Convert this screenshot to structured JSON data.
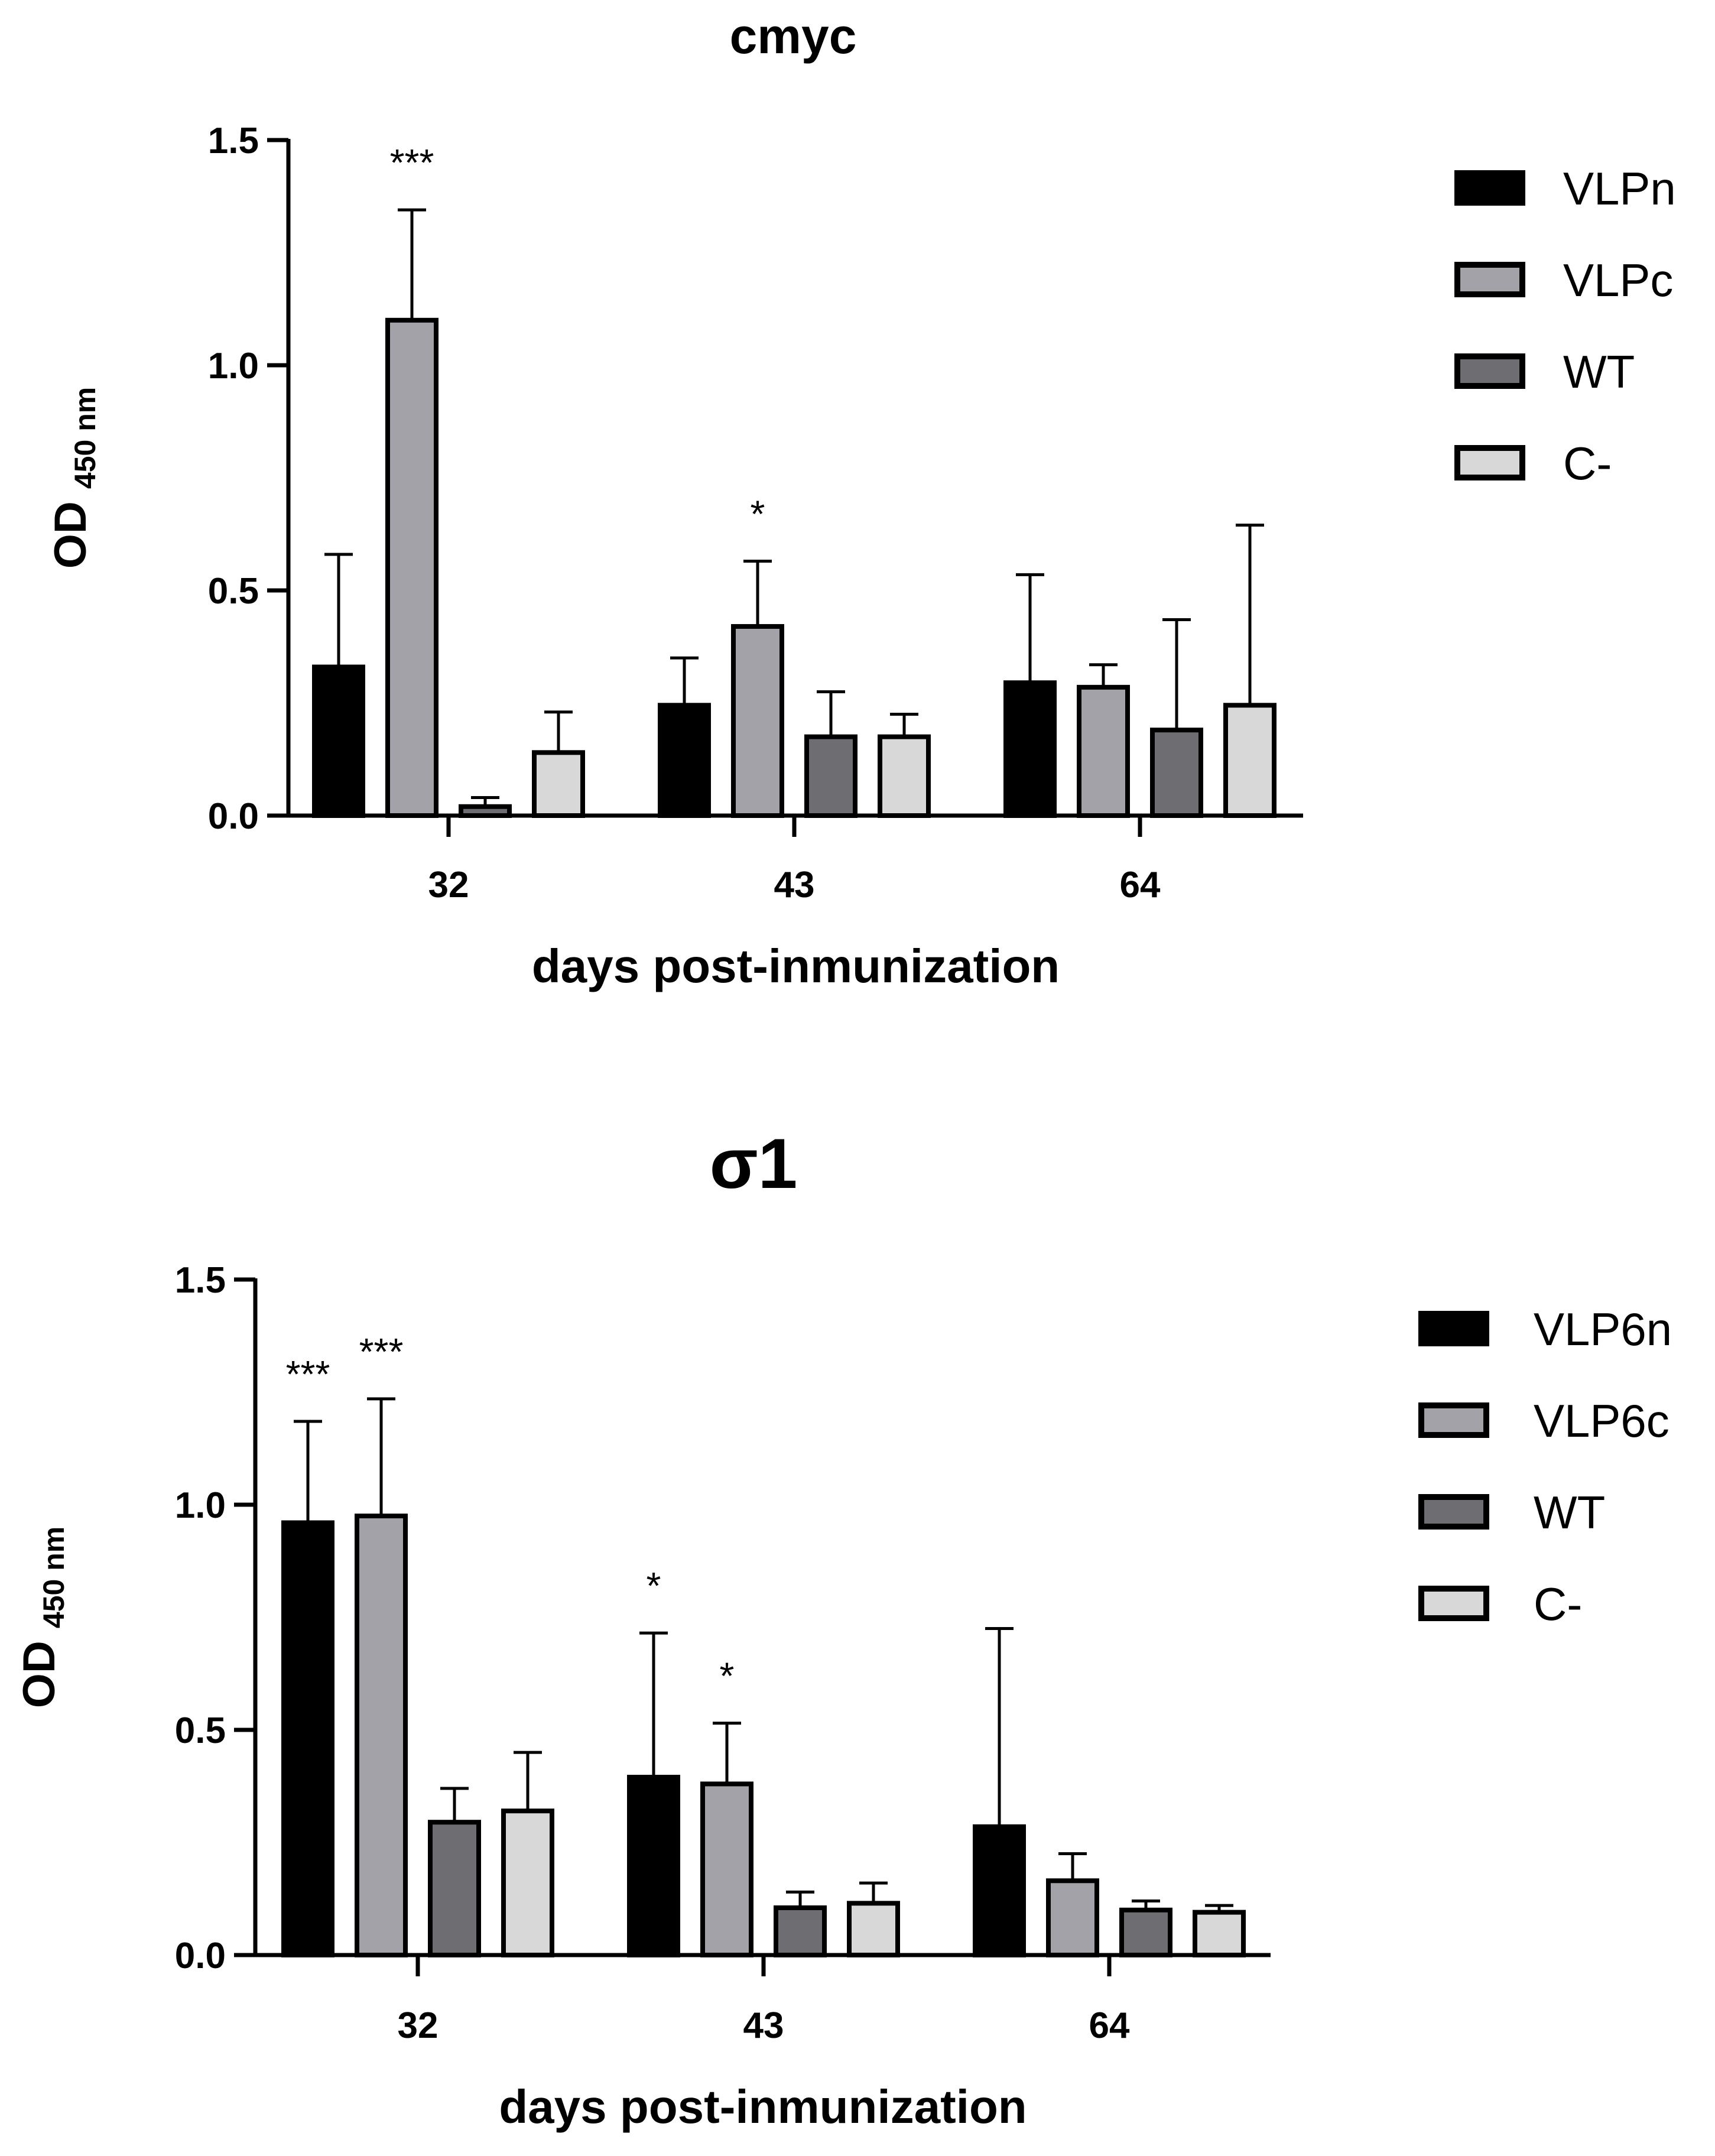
{
  "chart_data": [
    {
      "type": "bar",
      "title": "cmyc",
      "xlabel": "days post-inmunization",
      "ylabel": "OD",
      "ylabel_sub": "450 nm",
      "ylim": [
        0,
        1.5
      ],
      "yticks": [
        "0.0",
        "0.5",
        "1.0",
        "1.5"
      ],
      "categories": [
        "32",
        "43",
        "64"
      ],
      "series": [
        {
          "name": "VLPn",
          "color": "#000000",
          "values": [
            0.33,
            0.245,
            0.295
          ],
          "errors": [
            0.25,
            0.105,
            0.24
          ],
          "significance": [
            "",
            "",
            ""
          ]
        },
        {
          "name": "VLPc",
          "color": "#a2a2a8",
          "values": [
            1.1,
            0.42,
            0.285
          ],
          "errors": [
            0.245,
            0.145,
            0.05
          ],
          "significance": [
            "***",
            "*",
            ""
          ]
        },
        {
          "name": "WT",
          "color": "#6e6e72",
          "values": [
            0.02,
            0.175,
            0.19
          ],
          "errors": [
            0.02,
            0.1,
            0.245
          ],
          "significance": [
            "",
            "",
            ""
          ]
        },
        {
          "name": "C-",
          "color": "#d8d8d8",
          "values": [
            0.14,
            0.175,
            0.245
          ],
          "errors": [
            0.09,
            0.05,
            0.4
          ],
          "significance": [
            "",
            "",
            ""
          ]
        }
      ]
    },
    {
      "type": "bar",
      "title": "σ1",
      "xlabel": "days post-inmunization",
      "ylabel": "OD",
      "ylabel_sub": "450 nm",
      "ylim": [
        0,
        1.5
      ],
      "yticks": [
        "0.0",
        "0.5",
        "1.0",
        "1.5"
      ],
      "categories": [
        "32",
        "43",
        "64"
      ],
      "series": [
        {
          "name": "VLP6n",
          "color": "#000000",
          "values": [
            0.96,
            0.395,
            0.285
          ],
          "errors": [
            0.225,
            0.32,
            0.44
          ],
          "significance": [
            "***",
            "*",
            ""
          ]
        },
        {
          "name": "VLP6c",
          "color": "#a2a2a8",
          "values": [
            0.975,
            0.38,
            0.165
          ],
          "errors": [
            0.26,
            0.135,
            0.06
          ],
          "significance": [
            "***",
            "*",
            ""
          ]
        },
        {
          "name": "WT",
          "color": "#6e6e72",
          "values": [
            0.295,
            0.105,
            0.1
          ],
          "errors": [
            0.075,
            0.035,
            0.02
          ],
          "significance": [
            "",
            "",
            ""
          ]
        },
        {
          "name": "C-",
          "color": "#d8d8d8",
          "values": [
            0.32,
            0.115,
            0.095
          ],
          "errors": [
            0.13,
            0.045,
            0.015
          ],
          "significance": [
            "",
            "",
            ""
          ]
        }
      ]
    }
  ]
}
